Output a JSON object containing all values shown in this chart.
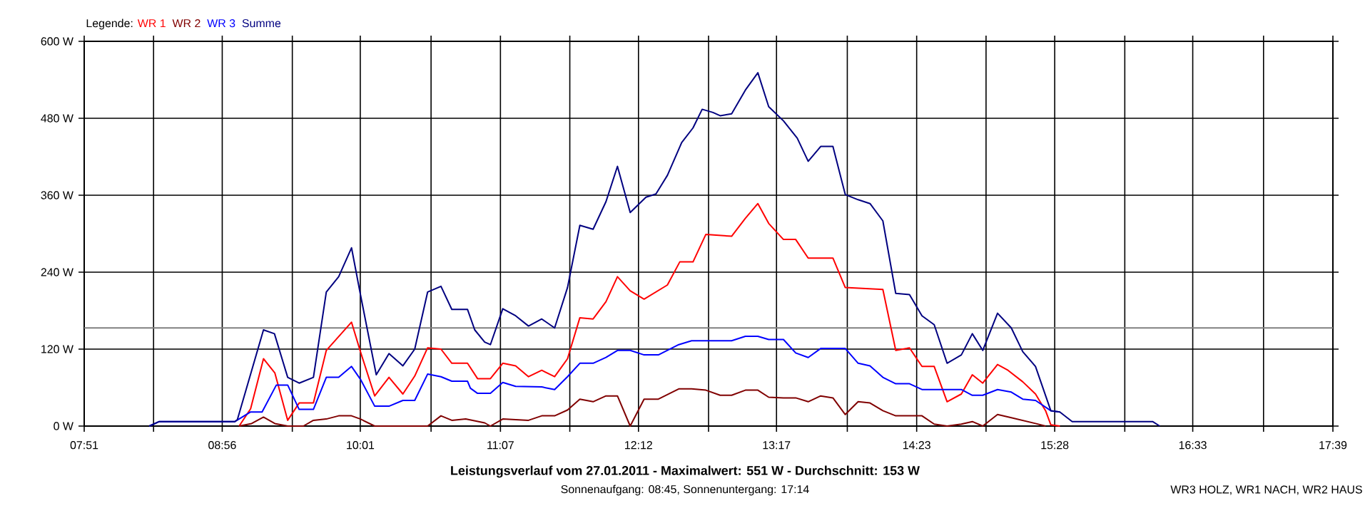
{
  "chart_data": {
    "type": "line",
    "title": "Leistungsverlauf vom 27.01.2011 - Maximalwert: 551 W - Durchschnitt: 153 W",
    "subtitle": "Sonnenaufgang: 08:45, Sonnenuntergang: 17:14",
    "annotations": [
      "WR3 HOLZ, WR1 NACH, WR2 HAUS"
    ],
    "legend_title": "Legende:",
    "legend": "top left",
    "grid": true,
    "line_style": "solid",
    "xlim": [
      7.85,
      17.65
    ],
    "xticks": [
      {
        "value": 7.85,
        "label": "07:51"
      },
      {
        "value": 8.3944,
        "label": null
      },
      {
        "value": 8.9333,
        "label": "08:56"
      },
      {
        "value": 9.4833,
        "label": null
      },
      {
        "value": 10.0167,
        "label": "10:01"
      },
      {
        "value": 10.5722,
        "label": null
      },
      {
        "value": 11.1167,
        "label": "11:07"
      },
      {
        "value": 11.6611,
        "label": null
      },
      {
        "value": 12.2,
        "label": "12:12"
      },
      {
        "value": 12.75,
        "label": null
      },
      {
        "value": 13.2833,
        "label": "13:17"
      },
      {
        "value": 13.8389,
        "label": null
      },
      {
        "value": 14.3833,
        "label": "14:23"
      },
      {
        "value": 14.9278,
        "label": null
      },
      {
        "value": 15.4667,
        "label": "15:28"
      },
      {
        "value": 16.0167,
        "label": null
      },
      {
        "value": 16.55,
        "label": "16:33"
      },
      {
        "value": 17.1056,
        "label": null
      },
      {
        "value": 17.65,
        "label": "17:39"
      }
    ],
    "ylim": [
      0,
      600
    ],
    "yticks": [
      {
        "value": 0,
        "label": "0 W"
      },
      {
        "value": 120,
        "label": "120 W"
      },
      {
        "value": 240,
        "label": "240 W"
      },
      {
        "value": 360,
        "label": "360 W"
      },
      {
        "value": 480,
        "label": "480 W"
      },
      {
        "value": 600,
        "label": "600 W"
      }
    ],
    "ref_lines": [
      {
        "axis": "y",
        "value": 153,
        "color": "#808080"
      }
    ],
    "series": [
      {
        "name": "WR 1",
        "color": "#ff0000",
        "x": [
          9.066,
          9.156,
          9.257,
          9.346,
          9.447,
          9.537,
          9.649,
          9.75,
          9.948,
          10.018,
          10.13,
          10.242,
          10.351,
          10.444,
          10.545,
          10.65,
          10.735,
          10.858,
          10.937,
          11.038,
          11.135,
          11.236,
          11.337,
          11.441,
          11.542,
          11.643,
          11.74,
          11.844,
          11.945,
          12.035,
          12.135,
          12.244,
          12.427,
          12.524,
          12.628,
          12.729,
          12.931,
          13.039,
          13.137,
          13.222,
          13.338,
          13.434,
          13.532,
          13.726,
          13.823,
          14.118,
          14.219,
          14.327,
          14.425,
          14.521,
          14.622,
          14.734,
          14.82,
          14.902,
          15.018,
          15.1,
          15.216,
          15.316,
          15.395,
          15.436,
          15.507
        ],
        "values": [
          0,
          27,
          105,
          83,
          9,
          36,
          36,
          118,
          162,
          116,
          47,
          76,
          50,
          78,
          122,
          120,
          98,
          98,
          74,
          74,
          98,
          94,
          77,
          87,
          77,
          105,
          169,
          167,
          194,
          233,
          211,
          198,
          220,
          256,
          256,
          299,
          296,
          324,
          347,
          316,
          291,
          291,
          262,
          262,
          216,
          213,
          118,
          122,
          93,
          93,
          38,
          50,
          80,
          67,
          96,
          87,
          69,
          50,
          24,
          2,
          0
        ]
      },
      {
        "name": "WR 2",
        "color": "#800000",
        "x": [
          9.066,
          9.164,
          9.257,
          9.346,
          9.447,
          9.57,
          9.649,
          9.75,
          9.847,
          9.948,
          10.018,
          10.13,
          10.545,
          10.65,
          10.735,
          10.844,
          10.993,
          11.038,
          11.135,
          11.337,
          11.441,
          11.542,
          11.643,
          11.74,
          11.844,
          11.945,
          12.035,
          12.135,
          12.244,
          12.356,
          12.516,
          12.617,
          12.729,
          12.841,
          12.931,
          13.039,
          13.137,
          13.222,
          13.338,
          13.434,
          13.532,
          13.63,
          13.726,
          13.823,
          13.924,
          14.017,
          14.118,
          14.219,
          14.425,
          14.521,
          14.622,
          14.734,
          14.82,
          14.902,
          15.018,
          15.126,
          15.316,
          15.395
        ],
        "values": [
          0,
          4,
          14,
          4,
          0,
          0,
          9,
          11,
          16,
          16,
          11,
          0,
          0,
          16,
          9,
          11,
          5,
          0,
          11,
          9,
          16,
          16,
          25,
          42,
          38,
          47,
          47,
          0,
          42,
          42,
          58,
          58,
          56,
          48,
          48,
          56,
          56,
          45,
          44,
          44,
          38,
          47,
          44,
          18,
          38,
          36,
          24,
          16,
          16,
          3,
          0,
          3,
          7,
          0,
          18,
          13,
          4,
          0
        ]
      },
      {
        "name": "WR 3",
        "color": "#0000ff",
        "x": [
          8.361,
          8.439,
          9.033,
          9.156,
          9.246,
          9.358,
          9.447,
          9.537,
          9.649,
          9.75,
          9.847,
          9.948,
          10.018,
          10.13,
          10.242,
          10.351,
          10.444,
          10.545,
          10.65,
          10.735,
          10.858,
          10.881,
          10.937,
          11.038,
          11.135,
          11.236,
          11.441,
          11.542,
          11.643,
          11.74,
          11.844,
          11.945,
          12.035,
          12.135,
          12.244,
          12.356,
          12.516,
          12.617,
          12.931,
          13.039,
          13.137,
          13.222,
          13.338,
          13.434,
          13.532,
          13.63,
          13.823,
          13.924,
          14.017,
          14.118,
          14.219,
          14.327,
          14.425,
          14.734,
          14.82,
          14.902,
          15.018,
          15.126,
          15.216,
          15.316,
          15.436,
          15.507
        ],
        "values": [
          0,
          7,
          7,
          22,
          22,
          64,
          64,
          26,
          26,
          76,
          76,
          93,
          73,
          31,
          31,
          40,
          40,
          81,
          77,
          70,
          70,
          59,
          51,
          51,
          68,
          62,
          61,
          57,
          77,
          98,
          98,
          107,
          118,
          118,
          111,
          111,
          127,
          133,
          133,
          140,
          140,
          135,
          135,
          114,
          107,
          121,
          121,
          98,
          94,
          76,
          66,
          66,
          57,
          57,
          48,
          48,
          57,
          53,
          42,
          40,
          24,
          22
        ]
      },
      {
        "name": "Summe",
        "color": "#000080",
        "x": [
          8.361,
          8.439,
          9.033,
          9.052,
          9.257,
          9.343,
          9.447,
          9.537,
          9.649,
          9.75,
          9.847,
          9.948,
          10.018,
          10.142,
          10.242,
          10.351,
          10.444,
          10.545,
          10.65,
          10.735,
          10.858,
          10.915,
          10.993,
          11.038,
          11.135,
          11.236,
          11.337,
          11.441,
          11.542,
          11.643,
          11.74,
          11.844,
          11.945,
          12.035,
          12.135,
          12.259,
          12.337,
          12.427,
          12.539,
          12.628,
          12.7,
          12.785,
          12.841,
          12.931,
          13.039,
          13.137,
          13.222,
          13.338,
          13.446,
          13.532,
          13.63,
          13.726,
          13.823,
          13.924,
          14.017,
          14.118,
          14.219,
          14.327,
          14.425,
          14.521,
          14.622,
          14.734,
          14.82,
          14.902,
          15.018,
          15.126,
          15.216,
          15.316,
          15.436,
          15.507,
          15.604,
          16.235,
          16.291
        ],
        "values": [
          0,
          7,
          7,
          10,
          150,
          144,
          76,
          67,
          76,
          209,
          233,
          278,
          205,
          80,
          113,
          94,
          120,
          209,
          218,
          182,
          182,
          150,
          131,
          127,
          183,
          172,
          156,
          167,
          153,
          216,
          313,
          307,
          350,
          405,
          333,
          357,
          362,
          391,
          442,
          465,
          494,
          489,
          484,
          487,
          524,
          551,
          498,
          476,
          449,
          413,
          436,
          436,
          361,
          353,
          347,
          320,
          207,
          205,
          172,
          158,
          98,
          111,
          144,
          118,
          176,
          153,
          116,
          93,
          24,
          22,
          7,
          7,
          0
        ]
      }
    ]
  }
}
